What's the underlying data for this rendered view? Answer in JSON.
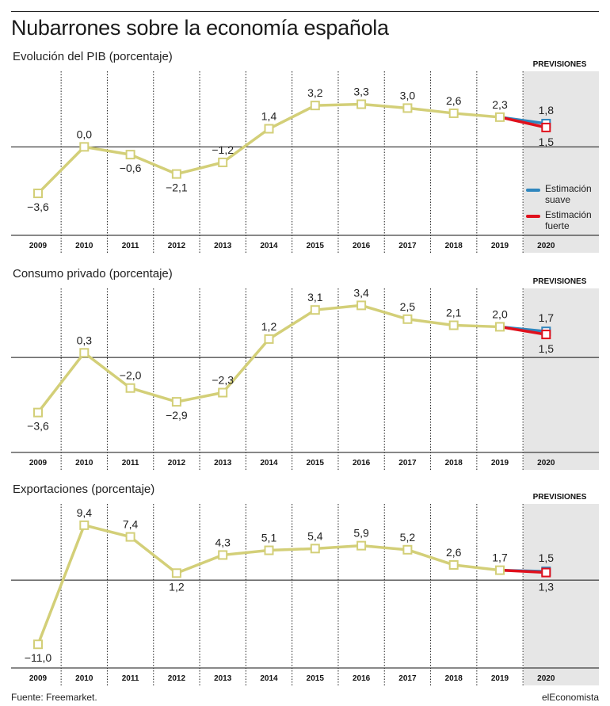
{
  "title": "Nubarrones sobre la economía española",
  "source": "Fuente: Freemarket.",
  "brand": "elEconomista",
  "colors": {
    "history": "#d3cf78",
    "soft": "#2f86be",
    "strong": "#e0101c",
    "forecast_band": "#e6e6e6",
    "zero_line": "#111111",
    "grid": "#222222"
  },
  "legend": [
    {
      "label": "Estimación suave",
      "series": "soft"
    },
    {
      "label": "Estimación fuerte",
      "series": "strong"
    }
  ],
  "chart_data": [
    {
      "type": "line",
      "title": "Evolución del PIB (porcentaje)",
      "forecast_label": "PREVISIONES",
      "categories": [
        "2009",
        "2010",
        "2011",
        "2012",
        "2013",
        "2014",
        "2015",
        "2016",
        "2017",
        "2018",
        "2019",
        "2020"
      ],
      "ylim": [
        -6.6,
        5.6
      ],
      "history": {
        "values": [
          -3.6,
          0.0,
          -0.6,
          -2.1,
          -1.2,
          1.4,
          3.2,
          3.3,
          3.0,
          2.6,
          2.3
        ],
        "labels": [
          "−3,6",
          "0,0",
          "−0,6",
          "−2,1",
          "−1,2",
          "1,4",
          "3,2",
          "3,3",
          "3,0",
          "2,6",
          "2,3"
        ]
      },
      "soft": {
        "name": "Estimación suave",
        "value": 1.8,
        "label": "1,8"
      },
      "strong": {
        "name": "Estimación fuerte",
        "value": 1.5,
        "label": "1,5"
      }
    },
    {
      "type": "line",
      "title": "Consumo privado (porcentaje)",
      "forecast_label": "PREVISIONES",
      "categories": [
        "2009",
        "2010",
        "2011",
        "2012",
        "2013",
        "2014",
        "2015",
        "2016",
        "2017",
        "2018",
        "2019",
        "2020"
      ],
      "ylim": [
        -6.0,
        4.3
      ],
      "history": {
        "values": [
          -3.6,
          0.3,
          -2.0,
          -2.9,
          -2.3,
          1.2,
          3.1,
          3.4,
          2.5,
          2.1,
          2.0
        ],
        "labels": [
          "−3,6",
          "0,3",
          "−2,0",
          "−2,9",
          "−2,3",
          "1,2",
          "3,1",
          "3,4",
          "2,5",
          "2,1",
          "2,0"
        ]
      },
      "soft": {
        "name": "Estimación suave",
        "value": 1.7,
        "label": "1,7"
      },
      "strong": {
        "name": "Estimación fuerte",
        "value": 1.5,
        "label": "1,5"
      }
    },
    {
      "type": "line",
      "title": "Exportaciones (porcentaje)",
      "forecast_label": "PREVISIONES",
      "categories": [
        "2009",
        "2010",
        "2011",
        "2012",
        "2013",
        "2014",
        "2015",
        "2016",
        "2017",
        "2018",
        "2019",
        "2020"
      ],
      "ylim": [
        -14.5,
        12.5
      ],
      "history": {
        "values": [
          -11.0,
          9.4,
          7.4,
          1.2,
          4.3,
          5.1,
          5.4,
          5.9,
          5.2,
          2.6,
          1.7
        ],
        "labels": [
          "−11,0",
          "9,4",
          "7,4",
          "1,2",
          "4,3",
          "5,1",
          "5,4",
          "5,9",
          "5,2",
          "2,6",
          "1,7"
        ]
      },
      "soft": {
        "name": "Estimación suave",
        "value": 1.5,
        "label": "1,5"
      },
      "strong": {
        "name": "Estimación fuerte",
        "value": 1.3,
        "label": "1,3"
      }
    }
  ]
}
